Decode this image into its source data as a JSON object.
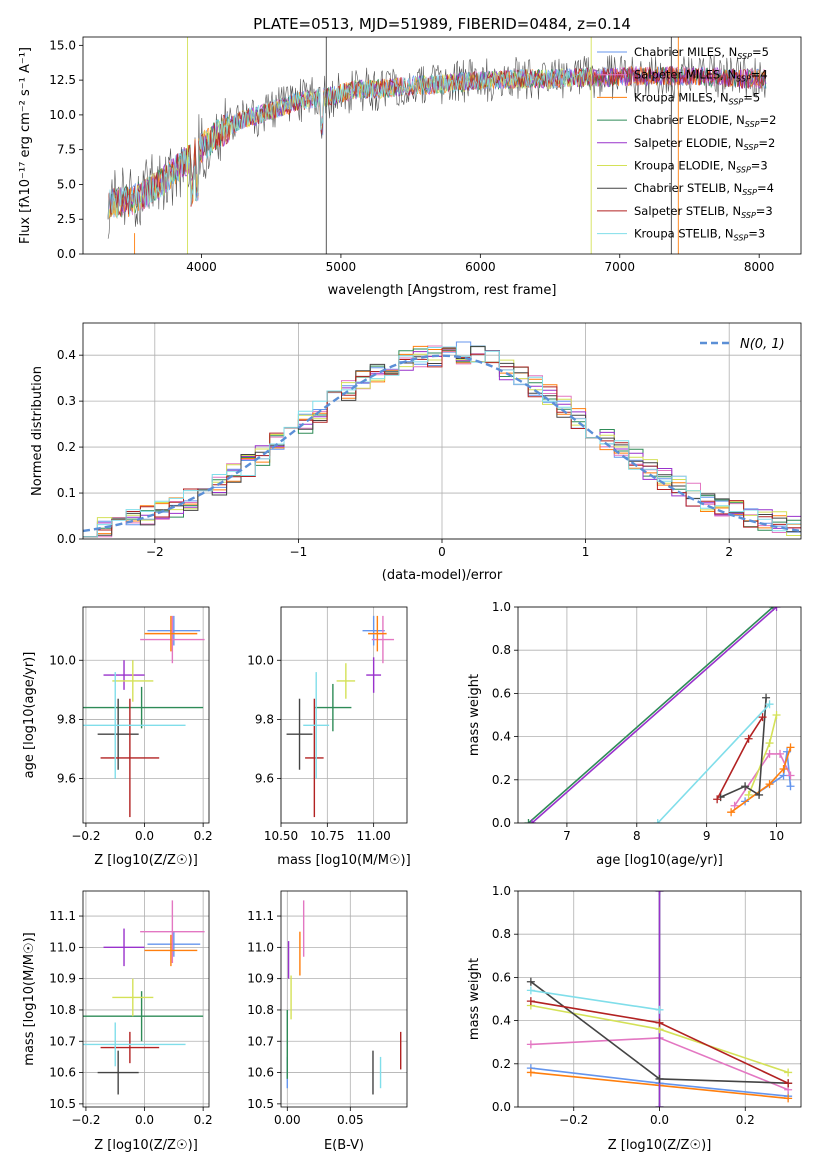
{
  "figure_title": "PLATE=0513, MJD=51989, FIBERID=0484, z=0.14",
  "series_styles": [
    {
      "name": "Chabrier MILES, N",
      "sub": "SSP",
      "suffix": "=5",
      "color": "#6495ed"
    },
    {
      "name": "Salpeter MILES, N",
      "sub": "SSP",
      "suffix": "=4",
      "color": "#e377c2"
    },
    {
      "name": "Kroupa MILES, N",
      "sub": "SSP",
      "suffix": "=5",
      "color": "#ff7f0e"
    },
    {
      "name": "Chabrier ELODIE, N",
      "sub": "SSP",
      "suffix": "=2",
      "color": "#2e8b57"
    },
    {
      "name": "Salpeter ELODIE, N",
      "sub": "SSP",
      "suffix": "=2",
      "color": "#9932cc"
    },
    {
      "name": "Kroupa ELODIE, N",
      "sub": "SSP",
      "suffix": "=3",
      "color": "#d4e157"
    },
    {
      "name": "Chabrier STELIB, N",
      "sub": "SSP",
      "suffix": "=4",
      "color": "#444444"
    },
    {
      "name": "Salpeter STELIB, N",
      "sub": "SSP",
      "suffix": "=3",
      "color": "#b22222"
    },
    {
      "name": "Kroupa STELIB, N",
      "sub": "SSP",
      "suffix": "=3",
      "color": "#80deea"
    }
  ],
  "chart_data": [
    {
      "id": "spectrum",
      "type": "line",
      "xlabel": "wavelength [Angstrom, rest frame]",
      "ylabel": "Flux [fλ10⁻¹⁷ erg cm⁻² s⁻¹ A⁻¹]",
      "xlim": [
        3150,
        8300
      ],
      "ylim": [
        0,
        15.6
      ],
      "xticks": [
        4000,
        5000,
        6000,
        7000,
        8000
      ],
      "yticks": [
        0.0,
        2.5,
        5.0,
        7.5,
        10.0,
        12.5,
        15.0
      ],
      "legend": "top-right",
      "continuum_x": [
        3330,
        3500,
        3700,
        3900,
        4100,
        4300,
        4500,
        4700,
        4900,
        5100,
        5300,
        5500,
        5700,
        5900,
        6100,
        6300,
        6500,
        6700,
        6900,
        7100,
        7300,
        7500,
        7700,
        7900,
        8050
      ],
      "continuum_y": [
        3.6,
        3.8,
        5.0,
        6.8,
        8.5,
        9.7,
        10.3,
        11.0,
        11.3,
        11.8,
        11.9,
        12.1,
        12.2,
        12.4,
        12.5,
        12.6,
        12.6,
        12.7,
        12.7,
        12.8,
        12.8,
        12.8,
        12.7,
        12.6,
        12.6
      ]
    },
    {
      "id": "residuals",
      "type": "histogram",
      "xlabel": "(data-model)/error",
      "ylabel": "Normed distribution",
      "xlim": [
        -2.5,
        2.5
      ],
      "ylim": [
        0,
        0.47
      ],
      "xticks": [
        -2,
        -1,
        0,
        1,
        2
      ],
      "yticks": [
        0.0,
        0.1,
        0.2,
        0.3,
        0.4
      ],
      "grid": true,
      "legend_label": "N(0, 1)",
      "legend": "top-right",
      "bin_width": 0.1
    },
    {
      "id": "age-vs-Z",
      "type": "errorbar",
      "xlabel": "Z [log10(Z/Z☉)]",
      "ylabel": "age  [log10(age/yr)]",
      "xlim": [
        -0.21,
        0.22
      ],
      "ylim": [
        9.45,
        10.18
      ],
      "xticks": [
        -0.2,
        0.0,
        0.2
      ],
      "yticks": [
        9.6,
        9.8,
        10.0
      ],
      "grid": true,
      "points": [
        {
          "x": 0.1,
          "y": 10.1,
          "xerr": 0.09,
          "yerr": 0.05
        },
        {
          "x": 0.095,
          "y": 10.07,
          "xerr": 0.11,
          "yerr": 0.08
        },
        {
          "x": 0.09,
          "y": 10.09,
          "xerr": 0.09,
          "yerr": 0.06
        },
        {
          "x": -0.01,
          "y": 9.84,
          "xerr": 0.21,
          "yerr": 0.07
        },
        {
          "x": -0.07,
          "y": 9.95,
          "xerr": 0.07,
          "yerr": 0.05
        },
        {
          "x": -0.04,
          "y": 9.93,
          "xerr": 0.07,
          "yerr": 0.07
        },
        {
          "x": -0.09,
          "y": 9.75,
          "xerr": 0.07,
          "yerr": 0.12
        },
        {
          "x": -0.05,
          "y": 9.67,
          "xerr": 0.1,
          "yerr": 0.2
        },
        {
          "x": -0.1,
          "y": 9.78,
          "xerr": 0.24,
          "yerr": 0.18
        }
      ]
    },
    {
      "id": "age-vs-mass",
      "type": "errorbar",
      "xlabel": "mass [log10(M/M☉)]",
      "xlim": [
        10.5,
        11.18
      ],
      "ylim": [
        9.45,
        10.18
      ],
      "xticks": [
        10.5,
        10.75,
        11.0
      ],
      "ytick_values": [
        9.6,
        9.8,
        10.0
      ],
      "yticks": [
        "9.6",
        "9.8",
        "10.0"
      ],
      "grid": true,
      "points": [
        {
          "x": 11.0,
          "y": 10.1,
          "xerr": 0.06,
          "yerr": 0.05
        },
        {
          "x": 11.05,
          "y": 10.07,
          "xerr": 0.06,
          "yerr": 0.08
        },
        {
          "x": 11.02,
          "y": 10.09,
          "xerr": 0.05,
          "yerr": 0.06
        },
        {
          "x": 10.78,
          "y": 9.84,
          "xerr": 0.1,
          "yerr": 0.08
        },
        {
          "x": 11.0,
          "y": 9.95,
          "xerr": 0.04,
          "yerr": 0.06
        },
        {
          "x": 10.85,
          "y": 9.93,
          "xerr": 0.05,
          "yerr": 0.06
        },
        {
          "x": 10.6,
          "y": 9.75,
          "xerr": 0.07,
          "yerr": 0.12
        },
        {
          "x": 10.68,
          "y": 9.67,
          "xerr": 0.05,
          "yerr": 0.2
        },
        {
          "x": 10.69,
          "y": 9.78,
          "xerr": 0.07,
          "yerr": 0.18
        }
      ]
    },
    {
      "id": "weight-vs-age",
      "type": "line",
      "xlabel": "age  [log10(age/yr)]",
      "ylabel": "mass weight",
      "xlim": [
        6.3,
        10.35
      ],
      "ylim": [
        0,
        1
      ],
      "xticks": [
        7,
        8,
        9,
        10
      ],
      "yticks": [
        0.0,
        0.2,
        0.4,
        0.6,
        0.8,
        1.0
      ],
      "grid": true,
      "series": [
        {
          "x": [
            9.55,
            10.1,
            10.15,
            10.2
          ],
          "y": [
            0.1,
            0.22,
            0.33,
            0.17
          ]
        },
        {
          "x": [
            9.4,
            9.9,
            10.05,
            10.2
          ],
          "y": [
            0.08,
            0.32,
            0.32,
            0.22
          ]
        },
        {
          "x": [
            9.35,
            9.9,
            10.1,
            10.2
          ],
          "y": [
            0.05,
            0.18,
            0.25,
            0.35
          ]
        },
        {
          "x": [
            6.45,
            9.95
          ],
          "y": [
            0.0,
            1.0
          ]
        },
        {
          "x": [
            6.5,
            10.0
          ],
          "y": [
            0.0,
            1.0
          ]
        },
        {
          "x": [
            9.6,
            9.9,
            10.0
          ],
          "y": [
            0.13,
            0.37,
            0.5
          ]
        },
        {
          "x": [
            9.2,
            9.55,
            9.75,
            9.85
          ],
          "y": [
            0.12,
            0.17,
            0.13,
            0.58
          ]
        },
        {
          "x": [
            9.15,
            9.6,
            9.8
          ],
          "y": [
            0.11,
            0.39,
            0.49
          ]
        },
        {
          "x": [
            8.3,
            9.9
          ],
          "y": [
            0.0,
            0.55
          ]
        }
      ]
    },
    {
      "id": "mass-vs-Z",
      "type": "errorbar",
      "xlabel": "Z [log10(Z/Z☉)]",
      "ylabel": "mass [log10(M/M☉)]",
      "xlim": [
        -0.21,
        0.22
      ],
      "ylim": [
        10.49,
        11.18
      ],
      "xticks": [
        -0.2,
        0.0,
        0.2
      ],
      "yticks": [
        10.5,
        10.6,
        10.7,
        10.8,
        10.9,
        11.0,
        11.1
      ],
      "grid": true,
      "points": [
        {
          "x": 0.1,
          "y": 11.01,
          "xerr": 0.09,
          "yerr": 0.04
        },
        {
          "x": 0.095,
          "y": 11.05,
          "xerr": 0.11,
          "yerr": 0.1
        },
        {
          "x": 0.09,
          "y": 10.99,
          "xerr": 0.09,
          "yerr": 0.05
        },
        {
          "x": -0.01,
          "y": 10.78,
          "xerr": 0.21,
          "yerr": 0.08
        },
        {
          "x": -0.07,
          "y": 11.0,
          "xerr": 0.07,
          "yerr": 0.06
        },
        {
          "x": -0.04,
          "y": 10.84,
          "xerr": 0.07,
          "yerr": 0.06
        },
        {
          "x": -0.09,
          "y": 10.6,
          "xerr": 0.07,
          "yerr": 0.07
        },
        {
          "x": -0.05,
          "y": 10.68,
          "xerr": 0.1,
          "yerr": 0.05
        },
        {
          "x": -0.1,
          "y": 10.69,
          "xerr": 0.24,
          "yerr": 0.07
        }
      ]
    },
    {
      "id": "mass-vs-EBV",
      "type": "errorbar",
      "xlabel": "E(B-V)",
      "xlim": [
        -0.005,
        0.095
      ],
      "ylim": [
        10.49,
        11.18
      ],
      "xticks": [
        0.0,
        0.05
      ],
      "yticks": [
        10.5,
        10.6,
        10.7,
        10.8,
        10.9,
        11.0,
        11.1
      ],
      "grid": true,
      "points": [
        {
          "x": 0.0,
          "y": 10.6,
          "xerr": 0.0,
          "yerr": 0.05
        },
        {
          "x": 0.013,
          "y": 11.06,
          "xerr": 0.0,
          "yerr": 0.09
        },
        {
          "x": 0.01,
          "y": 10.98,
          "xerr": 0.0,
          "yerr": 0.07
        },
        {
          "x": 0.0,
          "y": 10.69,
          "xerr": 0.0,
          "yerr": 0.11
        },
        {
          "x": 0.001,
          "y": 10.96,
          "xerr": 0.0,
          "yerr": 0.06
        },
        {
          "x": 0.003,
          "y": 10.84,
          "xerr": 0.0,
          "yerr": 0.07
        },
        {
          "x": 0.068,
          "y": 10.6,
          "xerr": 0.0,
          "yerr": 0.07
        },
        {
          "x": 0.09,
          "y": 10.67,
          "xerr": 0.0,
          "yerr": 0.06
        },
        {
          "x": 0.074,
          "y": 10.6,
          "xerr": 0.0,
          "yerr": 0.05
        }
      ]
    },
    {
      "id": "weight-vs-Z",
      "type": "line",
      "xlabel": "Z [log10(Z/Z☉)]",
      "ylabel": "mass weight",
      "xlim": [
        -0.33,
        0.33
      ],
      "ylim": [
        0,
        1
      ],
      "xticks": [
        -0.2,
        0.0,
        0.2
      ],
      "yticks": [
        0.0,
        0.2,
        0.4,
        0.6,
        0.8,
        1.0
      ],
      "grid": true,
      "series": [
        {
          "x": [
            -0.3,
            0.0,
            0.3
          ],
          "y": [
            0.18,
            0.11,
            0.05
          ]
        },
        {
          "x": [
            -0.3,
            0.0,
            0.3
          ],
          "y": [
            0.29,
            0.32,
            0.08
          ]
        },
        {
          "x": [
            -0.3,
            0.0,
            0.3
          ],
          "y": [
            0.16,
            0.1,
            0.04
          ]
        },
        {
          "x": [
            0.0,
            0.0
          ],
          "y": [
            0.0,
            1.0
          ]
        },
        {
          "x": [
            0.0,
            0.0
          ],
          "y": [
            0.0,
            1.0
          ]
        },
        {
          "x": [
            -0.3,
            0.0,
            0.3
          ],
          "y": [
            0.47,
            0.36,
            0.16
          ]
        },
        {
          "x": [
            -0.3,
            0.0,
            0.3
          ],
          "y": [
            0.58,
            0.13,
            0.11
          ]
        },
        {
          "x": [
            -0.3,
            0.0,
            0.3
          ],
          "y": [
            0.49,
            0.39,
            0.11
          ]
        },
        {
          "x": [
            -0.3,
            0.0
          ],
          "y": [
            0.54,
            0.45
          ]
        }
      ]
    }
  ]
}
